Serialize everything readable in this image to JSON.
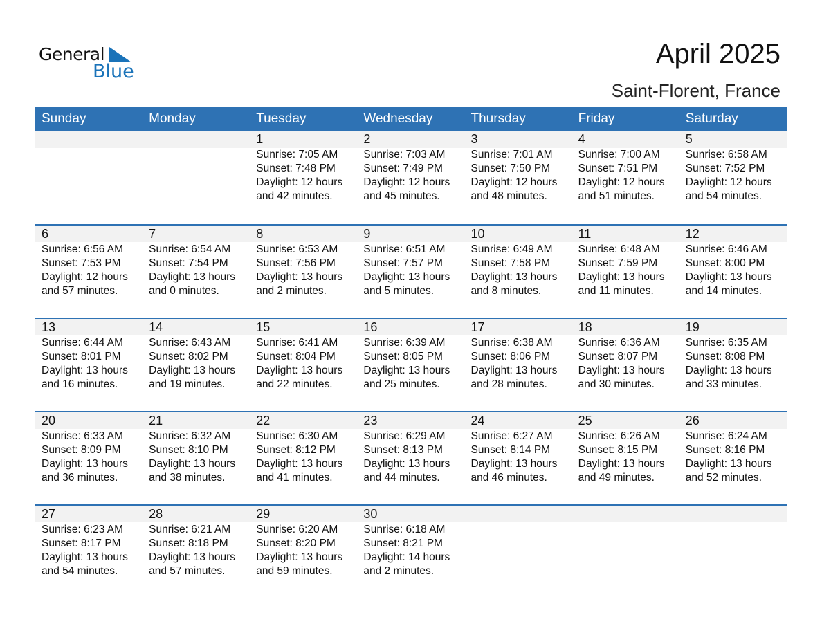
{
  "logo": {
    "line1": "General",
    "line2": "Blue",
    "accent": "#1a73b9"
  },
  "title": "April 2025",
  "subtitle": "Saint-Florent, France",
  "colors": {
    "header": "#2e72b4",
    "band": "#f2f2f2"
  },
  "days": [
    "Sunday",
    "Monday",
    "Tuesday",
    "Wednesday",
    "Thursday",
    "Friday",
    "Saturday"
  ],
  "weeks": [
    [
      null,
      null,
      {
        "day": "1",
        "sunrise": "Sunrise: 7:05 AM",
        "sunset": "Sunset: 7:48 PM",
        "daylight": "Daylight: 12 hours",
        "minutes": "and 42 minutes."
      },
      {
        "day": "2",
        "sunrise": "Sunrise: 7:03 AM",
        "sunset": "Sunset: 7:49 PM",
        "daylight": "Daylight: 12 hours",
        "minutes": "and 45 minutes."
      },
      {
        "day": "3",
        "sunrise": "Sunrise: 7:01 AM",
        "sunset": "Sunset: 7:50 PM",
        "daylight": "Daylight: 12 hours",
        "minutes": "and 48 minutes."
      },
      {
        "day": "4",
        "sunrise": "Sunrise: 7:00 AM",
        "sunset": "Sunset: 7:51 PM",
        "daylight": "Daylight: 12 hours",
        "minutes": "and 51 minutes."
      },
      {
        "day": "5",
        "sunrise": "Sunrise: 6:58 AM",
        "sunset": "Sunset: 7:52 PM",
        "daylight": "Daylight: 12 hours",
        "minutes": "and 54 minutes."
      }
    ],
    [
      {
        "day": "6",
        "sunrise": "Sunrise: 6:56 AM",
        "sunset": "Sunset: 7:53 PM",
        "daylight": "Daylight: 12 hours",
        "minutes": "and 57 minutes."
      },
      {
        "day": "7",
        "sunrise": "Sunrise: 6:54 AM",
        "sunset": "Sunset: 7:54 PM",
        "daylight": "Daylight: 13 hours",
        "minutes": "and 0 minutes."
      },
      {
        "day": "8",
        "sunrise": "Sunrise: 6:53 AM",
        "sunset": "Sunset: 7:56 PM",
        "daylight": "Daylight: 13 hours",
        "minutes": "and 2 minutes."
      },
      {
        "day": "9",
        "sunrise": "Sunrise: 6:51 AM",
        "sunset": "Sunset: 7:57 PM",
        "daylight": "Daylight: 13 hours",
        "minutes": "and 5 minutes."
      },
      {
        "day": "10",
        "sunrise": "Sunrise: 6:49 AM",
        "sunset": "Sunset: 7:58 PM",
        "daylight": "Daylight: 13 hours",
        "minutes": "and 8 minutes."
      },
      {
        "day": "11",
        "sunrise": "Sunrise: 6:48 AM",
        "sunset": "Sunset: 7:59 PM",
        "daylight": "Daylight: 13 hours",
        "minutes": "and 11 minutes."
      },
      {
        "day": "12",
        "sunrise": "Sunrise: 6:46 AM",
        "sunset": "Sunset: 8:00 PM",
        "daylight": "Daylight: 13 hours",
        "minutes": "and 14 minutes."
      }
    ],
    [
      {
        "day": "13",
        "sunrise": "Sunrise: 6:44 AM",
        "sunset": "Sunset: 8:01 PM",
        "daylight": "Daylight: 13 hours",
        "minutes": "and 16 minutes."
      },
      {
        "day": "14",
        "sunrise": "Sunrise: 6:43 AM",
        "sunset": "Sunset: 8:02 PM",
        "daylight": "Daylight: 13 hours",
        "minutes": "and 19 minutes."
      },
      {
        "day": "15",
        "sunrise": "Sunrise: 6:41 AM",
        "sunset": "Sunset: 8:04 PM",
        "daylight": "Daylight: 13 hours",
        "minutes": "and 22 minutes."
      },
      {
        "day": "16",
        "sunrise": "Sunrise: 6:39 AM",
        "sunset": "Sunset: 8:05 PM",
        "daylight": "Daylight: 13 hours",
        "minutes": "and 25 minutes."
      },
      {
        "day": "17",
        "sunrise": "Sunrise: 6:38 AM",
        "sunset": "Sunset: 8:06 PM",
        "daylight": "Daylight: 13 hours",
        "minutes": "and 28 minutes."
      },
      {
        "day": "18",
        "sunrise": "Sunrise: 6:36 AM",
        "sunset": "Sunset: 8:07 PM",
        "daylight": "Daylight: 13 hours",
        "minutes": "and 30 minutes."
      },
      {
        "day": "19",
        "sunrise": "Sunrise: 6:35 AM",
        "sunset": "Sunset: 8:08 PM",
        "daylight": "Daylight: 13 hours",
        "minutes": "and 33 minutes."
      }
    ],
    [
      {
        "day": "20",
        "sunrise": "Sunrise: 6:33 AM",
        "sunset": "Sunset: 8:09 PM",
        "daylight": "Daylight: 13 hours",
        "minutes": "and 36 minutes."
      },
      {
        "day": "21",
        "sunrise": "Sunrise: 6:32 AM",
        "sunset": "Sunset: 8:10 PM",
        "daylight": "Daylight: 13 hours",
        "minutes": "and 38 minutes."
      },
      {
        "day": "22",
        "sunrise": "Sunrise: 6:30 AM",
        "sunset": "Sunset: 8:12 PM",
        "daylight": "Daylight: 13 hours",
        "minutes": "and 41 minutes."
      },
      {
        "day": "23",
        "sunrise": "Sunrise: 6:29 AM",
        "sunset": "Sunset: 8:13 PM",
        "daylight": "Daylight: 13 hours",
        "minutes": "and 44 minutes."
      },
      {
        "day": "24",
        "sunrise": "Sunrise: 6:27 AM",
        "sunset": "Sunset: 8:14 PM",
        "daylight": "Daylight: 13 hours",
        "minutes": "and 46 minutes."
      },
      {
        "day": "25",
        "sunrise": "Sunrise: 6:26 AM",
        "sunset": "Sunset: 8:15 PM",
        "daylight": "Daylight: 13 hours",
        "minutes": "and 49 minutes."
      },
      {
        "day": "26",
        "sunrise": "Sunrise: 6:24 AM",
        "sunset": "Sunset: 8:16 PM",
        "daylight": "Daylight: 13 hours",
        "minutes": "and 52 minutes."
      }
    ],
    [
      {
        "day": "27",
        "sunrise": "Sunrise: 6:23 AM",
        "sunset": "Sunset: 8:17 PM",
        "daylight": "Daylight: 13 hours",
        "minutes": "and 54 minutes."
      },
      {
        "day": "28",
        "sunrise": "Sunrise: 6:21 AM",
        "sunset": "Sunset: 8:18 PM",
        "daylight": "Daylight: 13 hours",
        "minutes": "and 57 minutes."
      },
      {
        "day": "29",
        "sunrise": "Sunrise: 6:20 AM",
        "sunset": "Sunset: 8:20 PM",
        "daylight": "Daylight: 13 hours",
        "minutes": "and 59 minutes."
      },
      {
        "day": "30",
        "sunrise": "Sunrise: 6:18 AM",
        "sunset": "Sunset: 8:21 PM",
        "daylight": "Daylight: 14 hours",
        "minutes": "and 2 minutes."
      },
      null,
      null,
      null
    ]
  ]
}
